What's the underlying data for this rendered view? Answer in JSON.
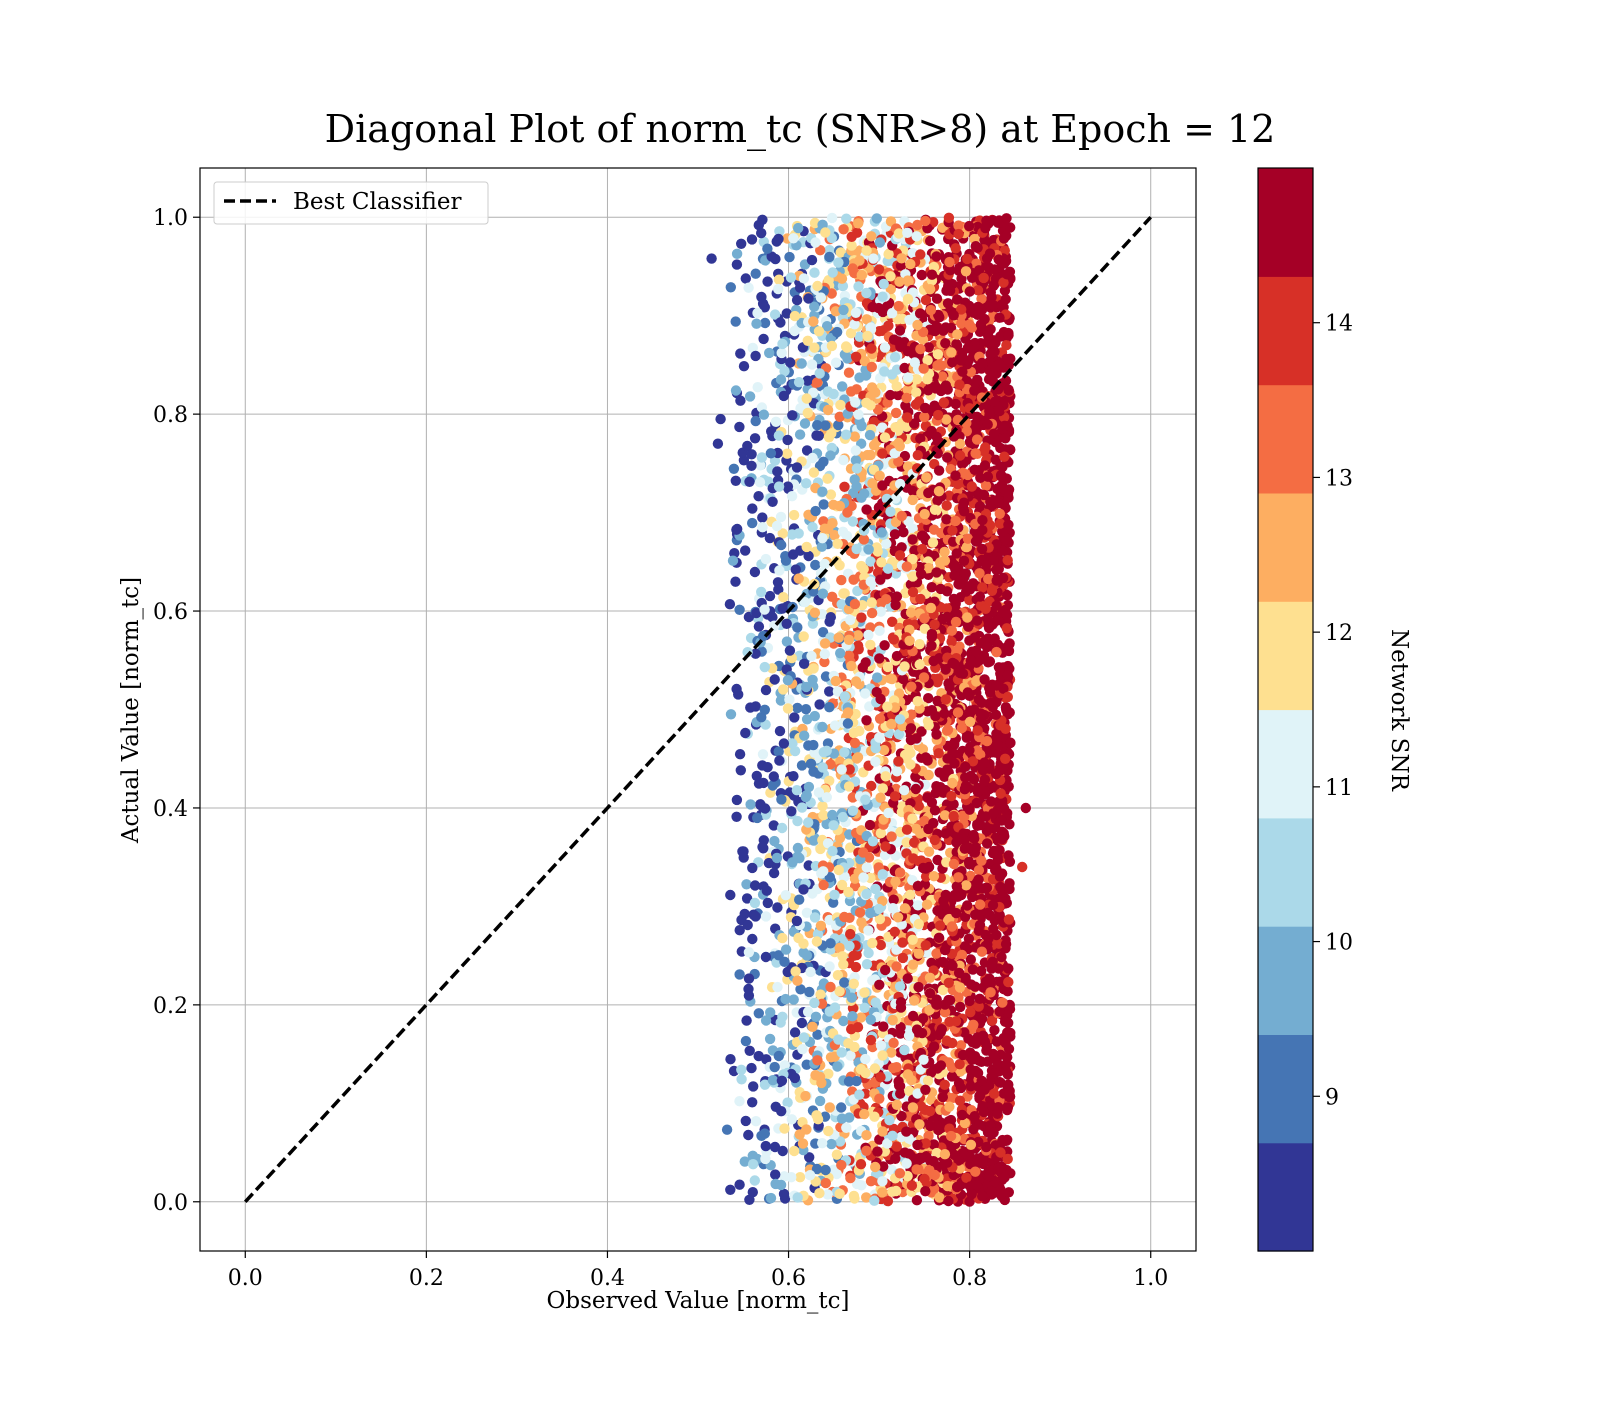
{
  "chart_data": {
    "type": "scatter",
    "title": "Diagonal Plot of norm_tc (SNR>8) at Epoch = 12",
    "xlabel": "Observed Value [norm_tc]",
    "ylabel": "Actual Value [norm_tc]",
    "xlim": [
      -0.05,
      1.05
    ],
    "ylim": [
      -0.05,
      1.05
    ],
    "xticks": [
      "0.0",
      "0.2",
      "0.4",
      "0.6",
      "0.8",
      "1.0"
    ],
    "yticks": [
      "0.0",
      "0.2",
      "0.4",
      "0.6",
      "0.8",
      "1.0"
    ],
    "grid": true,
    "legend": {
      "position": "upper-left",
      "entries": [
        {
          "label": "Best Classifier",
          "style": "dashed",
          "color": "#000000"
        }
      ]
    },
    "reference_line": {
      "label": "Best Classifier",
      "x": [
        0.0,
        1.0
      ],
      "y": [
        0.0,
        1.0
      ]
    },
    "scatter_summary": {
      "x_range": [
        0.53,
        0.87
      ],
      "y_range": [
        0.0,
        1.0
      ],
      "color_variable": "Network SNR",
      "note": "Dense cloud: higher SNR points concentrated at larger observed values (0.70-0.85), lower SNR points near 0.53-0.62"
    },
    "colorbar": {
      "label": "Network SNR",
      "range": [
        8.0,
        15.0
      ],
      "ticks": [
        "9",
        "10",
        "11",
        "12",
        "13",
        "14"
      ],
      "tick_values": [
        9,
        10,
        11,
        12,
        13,
        14
      ],
      "colors": [
        "#313695",
        "#4575b4",
        "#74add1",
        "#abd9e9",
        "#e0f3f8",
        "#fee090",
        "#fdae61",
        "#f46d43",
        "#d73027",
        "#a50026"
      ],
      "cmap": "RdYlBu_r (10 discrete bins)"
    }
  }
}
